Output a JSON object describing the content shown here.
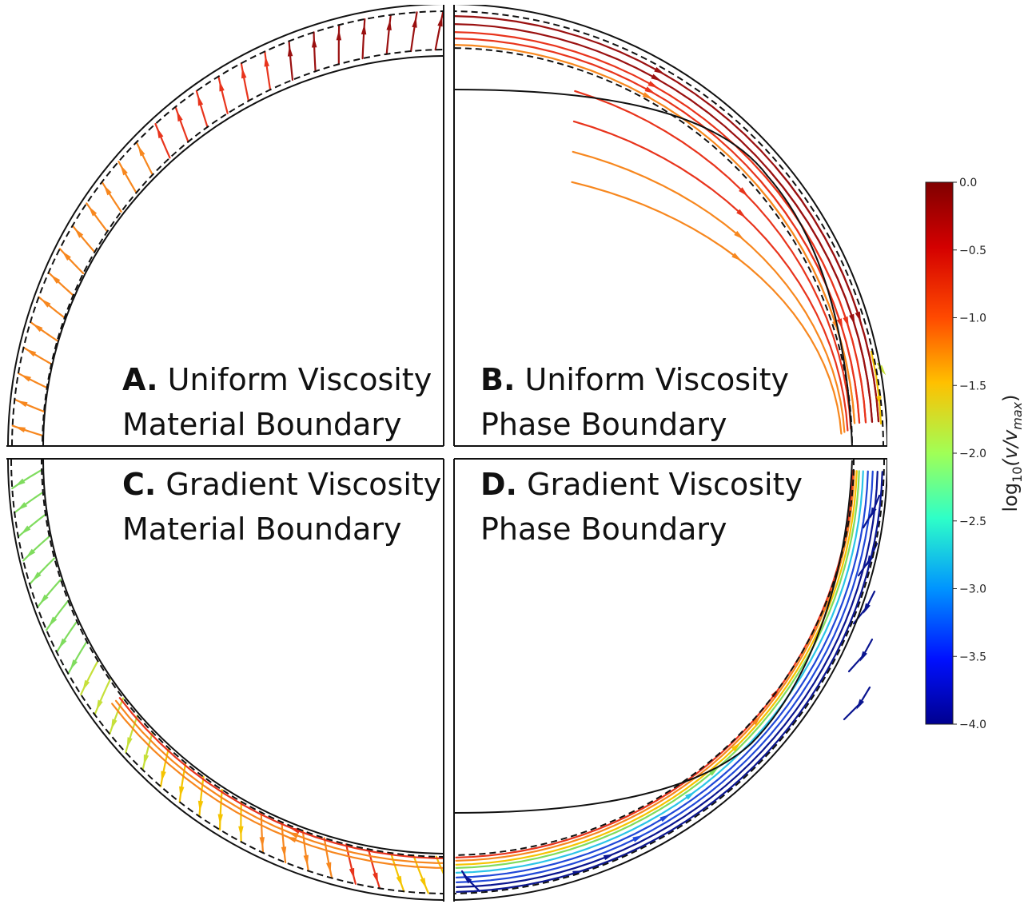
{
  "panels": [
    {
      "id": "A",
      "letter": "A.",
      "line1": "Uniform Viscosity",
      "line2": "Material Boundary"
    },
    {
      "id": "B",
      "letter": "B.",
      "line1": "Uniform Viscosity",
      "line2": "Phase Boundary"
    },
    {
      "id": "C",
      "letter": "C.",
      "line1": "Gradient Viscosity",
      "line2": "Material Boundary"
    },
    {
      "id": "D",
      "letter": "D.",
      "line1": "Gradient Viscosity",
      "line2": "Phase Boundary"
    }
  ],
  "colorbar": {
    "label_main": "log",
    "label_sub": "10",
    "label_rest": "(v/v",
    "label_max": "max",
    "label_close": ")",
    "ticks": [
      "0.0",
      "−0.5",
      "−1.0",
      "−1.5",
      "−2.0",
      "−2.5",
      "−3.0",
      "−3.5",
      "−4.0"
    ],
    "range": [
      -4.0,
      0.0
    ],
    "colormap": "jet"
  },
  "colors": {
    "dark_red": "#9a1010",
    "red": "#e8341c",
    "orange": "#f7871e",
    "yellow": "#f5c400",
    "yellow_green": "#c6e03a",
    "green": "#7fdc5e",
    "cyan": "#2bc4e8",
    "blue": "#2048d8",
    "navy": "#0a1590"
  }
}
